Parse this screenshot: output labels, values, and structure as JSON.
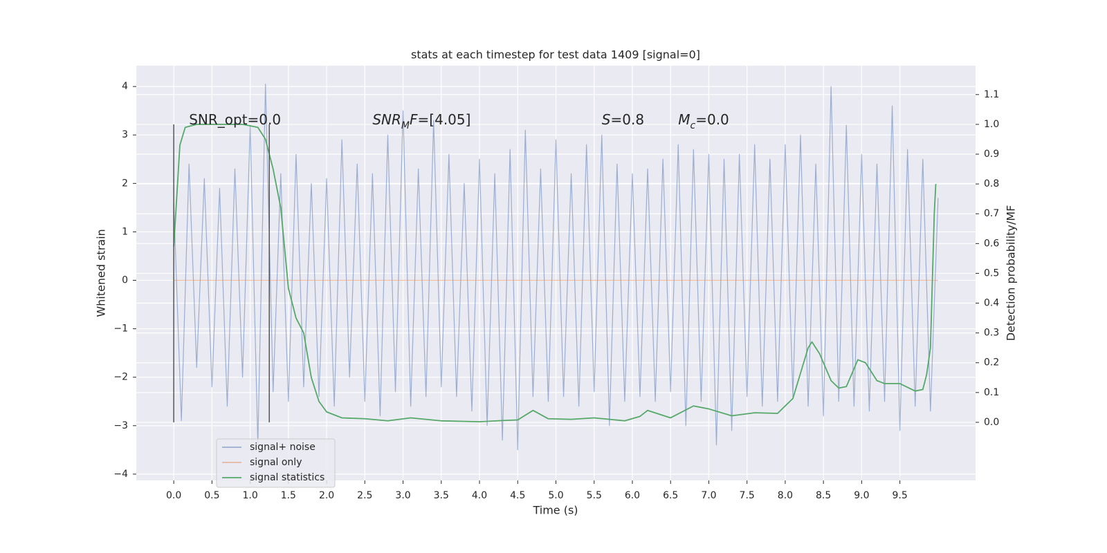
{
  "chart_data": {
    "type": "line",
    "title": "stats at each timestep for test data 1409 [signal=0]",
    "xlabel": "Time (s)",
    "ylabel": "Whitened strain",
    "y2label": "Detection probability/MF",
    "xlim": [
      -0.49,
      10.49
    ],
    "ylim": [
      -4.13,
      4.43
    ],
    "y2lim": [
      -0.195,
      1.197
    ],
    "xticks": [
      {
        "value": 0,
        "label": "0.0"
      },
      0.5,
      {
        "value": 1,
        "label": "1.0"
      },
      1.5,
      {
        "value": 2,
        "label": "2.0"
      },
      2.5,
      {
        "value": 3,
        "label": "3.0"
      },
      3.5,
      {
        "value": 4,
        "label": "4.0"
      },
      4.5,
      {
        "value": 5,
        "label": "5.0"
      },
      5.5,
      {
        "value": 6,
        "label": "6.0"
      },
      6.5,
      {
        "value": 7,
        "label": "7.0"
      },
      7.5,
      {
        "value": 8,
        "label": "8.0"
      },
      8.5,
      {
        "value": 9,
        "label": "9.0"
      },
      9.5
    ],
    "yticks": [
      {
        "value": -4,
        "label": "−4"
      },
      {
        "value": -3,
        "label": "−3"
      },
      {
        "value": -2,
        "label": "−2"
      },
      {
        "value": -1,
        "label": "−1"
      },
      0,
      1,
      2,
      3,
      4
    ],
    "y2ticks": [
      {
        "value": 0,
        "label": "0.0"
      },
      0.1,
      0.2,
      0.3,
      0.4,
      0.5,
      0.6,
      0.7,
      0.8,
      0.9,
      {
        "value": 1,
        "label": "1.0"
      },
      1.1
    ],
    "grid": true,
    "legend": "lower left",
    "series": [
      {
        "name": "signal+ noise",
        "color": "#4c72b0",
        "alpha": 0.5,
        "x": [
          0,
          0.1,
          0.2,
          0.3,
          0.4,
          0.5,
          0.6,
          0.7,
          0.8,
          0.9,
          1,
          1.1,
          1.2,
          1.3,
          1.4,
          1.5,
          1.6,
          1.7,
          1.8,
          1.9,
          2,
          2.1,
          2.2,
          2.3,
          2.4,
          2.5,
          2.6,
          2.7,
          2.8,
          2.9,
          3,
          3.1,
          3.2,
          3.3,
          3.4,
          3.5,
          3.6,
          3.7,
          3.8,
          3.9,
          4,
          4.1,
          4.2,
          4.3,
          4.4,
          4.5,
          4.6,
          4.7,
          4.8,
          4.9,
          5,
          5.1,
          5.2,
          5.3,
          5.4,
          5.5,
          5.6,
          5.7,
          5.8,
          5.9,
          6,
          6.1,
          6.2,
          6.3,
          6.4,
          6.5,
          6.6,
          6.7,
          6.8,
          6.9,
          7,
          7.1,
          7.2,
          7.3,
          7.4,
          7.5,
          7.6,
          7.7,
          7.8,
          7.9,
          8,
          8.1,
          8.2,
          8.3,
          8.4,
          8.5,
          8.6,
          8.7,
          8.8,
          8.9,
          9,
          9.1,
          9.2,
          9.3,
          9.4,
          9.5,
          9.6,
          9.7,
          9.8,
          9.9,
          10
        ],
        "values": [
          1.6,
          -2.9,
          2.4,
          -1.8,
          2.1,
          -2.2,
          1.9,
          -2.6,
          2.3,
          -2.0,
          3.2,
          -3.4,
          4.05,
          -2.3,
          2.2,
          -2.5,
          2.6,
          -2.2,
          2.0,
          -2.4,
          2.1,
          -2.6,
          2.9,
          -2.0,
          2.4,
          -2.5,
          2.2,
          -2.8,
          3.0,
          -2.3,
          3.5,
          -2.6,
          2.3,
          -2.4,
          3.3,
          -2.2,
          2.6,
          -2.4,
          2.0,
          -2.7,
          2.5,
          -3.0,
          2.2,
          -3.3,
          2.7,
          -3.5,
          3.1,
          -2.4,
          2.3,
          -2.5,
          2.9,
          -2.4,
          2.2,
          -2.6,
          2.8,
          -2.3,
          3.0,
          -3.0,
          2.4,
          -2.5,
          2.2,
          -2.4,
          2.3,
          -2.5,
          2.5,
          -2.3,
          2.8,
          -3.0,
          2.7,
          -2.5,
          2.6,
          -3.4,
          2.5,
          -3.1,
          2.6,
          -2.4,
          2.8,
          -2.6,
          2.5,
          -2.5,
          2.8,
          -2.4,
          3.0,
          -2.6,
          2.4,
          -2.8,
          4.0,
          -2.5,
          3.2,
          -2.6,
          2.6,
          -2.7,
          2.4,
          -2.5,
          3.6,
          -3.1,
          2.7,
          -2.6,
          2.5,
          -2.7,
          1.7
        ]
      },
      {
        "name": "signal only",
        "color": "#dd8452",
        "alpha": 0.5,
        "x": [
          0,
          10
        ],
        "values": [
          0,
          0
        ]
      },
      {
        "name": "signal statistics",
        "color": "#55a868",
        "alpha": 1,
        "axis": "y2",
        "x": [
          0,
          0.08,
          0.15,
          0.3,
          0.5,
          0.9,
          1.1,
          1.2,
          1.3,
          1.4,
          1.5,
          1.55,
          1.6,
          1.7,
          1.8,
          1.9,
          2.0,
          2.2,
          2.5,
          2.8,
          3.1,
          3.5,
          4.0,
          4.3,
          4.5,
          4.7,
          4.9,
          5.2,
          5.5,
          5.9,
          6.1,
          6.2,
          6.5,
          6.8,
          7.0,
          7.3,
          7.6,
          7.9,
          8.1,
          8.3,
          8.35,
          8.45,
          8.6,
          8.7,
          8.8,
          8.95,
          9.05,
          9.2,
          9.3,
          9.5,
          9.7,
          9.8,
          9.85,
          9.9,
          9.95,
          9.97
        ],
        "values": [
          0.59,
          0.93,
          0.99,
          1.0,
          1.0,
          1.0,
          0.99,
          0.95,
          0.85,
          0.72,
          0.45,
          0.4,
          0.35,
          0.3,
          0.15,
          0.07,
          0.035,
          0.015,
          0.012,
          0.005,
          0.015,
          0.005,
          0.002,
          0.006,
          0.008,
          0.04,
          0.012,
          0.01,
          0.015,
          0.005,
          0.02,
          0.04,
          0.015,
          0.055,
          0.045,
          0.022,
          0.032,
          0.03,
          0.08,
          0.25,
          0.27,
          0.23,
          0.14,
          0.115,
          0.12,
          0.21,
          0.2,
          0.14,
          0.13,
          0.13,
          0.105,
          0.11,
          0.16,
          0.25,
          0.7,
          0.8
        ]
      }
    ],
    "vlines": {
      "x": [
        0,
        1.25
      ],
      "ymin": 0,
      "ymax": 1,
      "axis": "y2",
      "color": "#555555"
    },
    "annotations": [
      {
        "x": 0.2,
        "y": 3.3,
        "parts": [
          {
            "t": "SNR_opt=0.0"
          }
        ]
      },
      {
        "x": 2.6,
        "y": 3.3,
        "parts": [
          {
            "t": "SNR",
            "italic": true
          },
          {
            "t": "M",
            "italic": true,
            "sub": true
          },
          {
            "t": "F",
            "italic": true
          },
          {
            "t": "=[4.05]"
          }
        ]
      },
      {
        "x": 5.6,
        "y": 3.3,
        "parts": [
          {
            "t": "S",
            "italic": true
          },
          {
            "t": "=0.8"
          }
        ]
      },
      {
        "x": 6.6,
        "y": 3.3,
        "parts": [
          {
            "t": "M",
            "italic": true
          },
          {
            "t": "c",
            "italic": true,
            "sub": true
          },
          {
            "t": "=0.0"
          }
        ]
      }
    ]
  }
}
